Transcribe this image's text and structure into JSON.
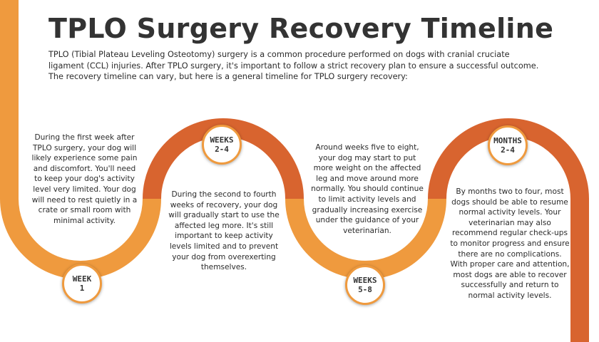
{
  "title": "TPLO Surgery Recovery Timeline",
  "intro": "TPLO (Tibial Plateau Leveling Osteotomy) surgery is a common procedure performed on dogs with cranial cruciate ligament (CCL) injuries. After TPLO surgery, it's important to follow a strict recovery plan to ensure a successful outcome. The recovery timeline can vary, but here is a general timeline for TPLO surgery recovery:",
  "colors": {
    "light_orange": "#ef9a3e",
    "dark_orange": "#d8642f",
    "text": "#2b2b2b"
  },
  "steps": [
    {
      "badge_line1": "WEEK",
      "badge_line2": "1",
      "text": "During the first week after TPLO surgery, your dog will likely experience some pain and discomfort. You'll need to keep your dog's activity level very limited. Your dog will need to rest quietly in a crate or small room with minimal activity."
    },
    {
      "badge_line1": "WEEKS",
      "badge_line2": "2-4",
      "text": "During the second to fourth weeks of recovery, your dog will gradually start to use the affected leg more. It's still important to keep activity levels limited and to prevent your dog from overexerting themselves."
    },
    {
      "badge_line1": "WEEKS",
      "badge_line2": "5-8",
      "text": "Around weeks five to eight, your dog may start to put more weight on the affected leg and move around more normally. You should continue to limit activity levels and gradually increasing exercise under the guidance of your veterinarian."
    },
    {
      "badge_line1": "MONTHS",
      "badge_line2": "2-4",
      "text": "By months two to four, most dogs should be able to resume normal activity levels. Your veterinarian may also recommend regular check-ups to monitor progress and ensure there are no complications. With proper care and attention, most dogs are able to recover successfully and return to normal activity levels."
    }
  ]
}
